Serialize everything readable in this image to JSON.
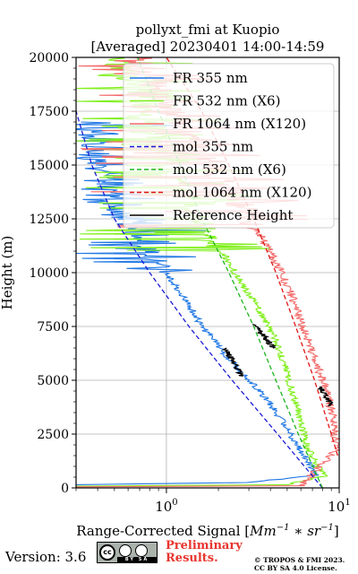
{
  "chart_data": {
    "type": "line",
    "title": "pollyxt_fmi at Kuopio",
    "subtitle": "[Averaged] 20230401 14:00-14:59",
    "xlabel": "Range-Corrected Signal [Mm^-1 * sr^-1]",
    "ylabel": "Height (m)",
    "xscale": "log",
    "xlim": [
      0.3,
      10
    ],
    "ylim": [
      0,
      20000
    ],
    "x_ticks": [
      "10^0",
      "10^1"
    ],
    "y_ticks": [
      "0",
      "2500",
      "5000",
      "7500",
      "10000",
      "12500",
      "15000",
      "17500",
      "20000"
    ],
    "grid": true,
    "legend_position": "top-right",
    "series": [
      {
        "name": "FR 355 nm",
        "color": "#1f77e4",
        "style": "solid",
        "points": [
          [
            0.3,
            150
          ],
          [
            3.0,
            250
          ],
          [
            7.5,
            600
          ],
          [
            6.6,
            1200
          ],
          [
            5.5,
            2200
          ],
          [
            4.6,
            3200
          ],
          [
            3.9,
            4000
          ],
          [
            3.3,
            4700
          ],
          [
            2.8,
            5300
          ],
          [
            2.3,
            6000
          ],
          [
            1.9,
            6800
          ],
          [
            1.6,
            7500
          ],
          [
            1.4,
            8300
          ],
          [
            1.2,
            9100
          ],
          [
            1.0,
            10000
          ],
          [
            0.85,
            10700
          ],
          [
            0.7,
            11600
          ],
          [
            0.6,
            12300
          ],
          [
            0.5,
            13000
          ],
          [
            0.45,
            14000
          ],
          [
            0.4,
            15000
          ],
          [
            0.35,
            16000
          ],
          [
            0.32,
            17000
          ]
        ]
      },
      {
        "name": "FR 532 nm (X6)",
        "color": "#7fef1a",
        "style": "solid",
        "points": [
          [
            0.3,
            80
          ],
          [
            5.0,
            150
          ],
          [
            8.3,
            550
          ],
          [
            7.5,
            1000
          ],
          [
            6.5,
            2000
          ],
          [
            6.0,
            3000
          ],
          [
            5.6,
            4000
          ],
          [
            5.1,
            5000
          ],
          [
            4.7,
            6000
          ],
          [
            4.2,
            7000
          ],
          [
            3.6,
            8000
          ],
          [
            3.0,
            9000
          ],
          [
            2.5,
            10000
          ],
          [
            2.1,
            11000
          ],
          [
            1.7,
            12000
          ],
          [
            1.4,
            13000
          ],
          [
            1.1,
            14500
          ],
          [
            0.9,
            16000
          ],
          [
            0.7,
            18000
          ],
          [
            0.5,
            20000
          ]
        ]
      },
      {
        "name": "FR 1064 nm (X120)",
        "color": "#f46b6b",
        "style": "solid",
        "points": [
          [
            0.3,
            50
          ],
          [
            6.0,
            100
          ],
          [
            9.7,
            1800
          ],
          [
            9.3,
            3000
          ],
          [
            8.8,
            4000
          ],
          [
            8.0,
            5000
          ],
          [
            7.2,
            6000
          ],
          [
            6.5,
            7000
          ],
          [
            5.8,
            8000
          ],
          [
            5.3,
            9000
          ],
          [
            4.6,
            10000
          ],
          [
            4.0,
            11000
          ],
          [
            3.3,
            12000
          ],
          [
            2.7,
            13000
          ],
          [
            2.2,
            14000
          ],
          [
            1.9,
            15000
          ],
          [
            1.5,
            16000
          ],
          [
            1.2,
            17000
          ],
          [
            1.0,
            18000
          ],
          [
            0.8,
            19000
          ],
          [
            0.6,
            20000
          ]
        ]
      },
      {
        "name": "mol 355 nm",
        "color": "#1a1ad6",
        "style": "dashed",
        "points": [
          [
            8.0,
            0
          ],
          [
            4.4,
            2500
          ],
          [
            2.4,
            5000
          ],
          [
            1.35,
            7500
          ],
          [
            0.8,
            10000
          ],
          [
            0.5,
            12500
          ],
          [
            0.37,
            15000
          ],
          [
            0.3,
            17500
          ]
        ]
      },
      {
        "name": "mol 532 nm (X6)",
        "color": "#1db51d",
        "style": "dashed",
        "points": [
          [
            8.0,
            0
          ],
          [
            5.8,
            2500
          ],
          [
            4.3,
            5000
          ],
          [
            3.2,
            7500
          ],
          [
            2.3,
            10000
          ],
          [
            1.6,
            12500
          ],
          [
            1.2,
            15000
          ],
          [
            0.9,
            17500
          ],
          [
            0.68,
            20000
          ]
        ]
      },
      {
        "name": "mol 1064 nm (X120)",
        "color": "#e01515",
        "style": "dashed",
        "points": [
          [
            9.8,
            1500
          ],
          [
            9.0,
            2500
          ],
          [
            7.2,
            5000
          ],
          [
            5.6,
            7500
          ],
          [
            4.3,
            10000
          ],
          [
            3.2,
            12500
          ],
          [
            2.3,
            15000
          ],
          [
            1.6,
            17500
          ],
          [
            1.0,
            20000
          ]
        ]
      },
      {
        "name": "Reference Height",
        "color": "#000000",
        "style": "solid",
        "segments": [
          {
            "x_range": [
              2.2,
              2.7
            ],
            "y_range": [
              5200,
              6500
            ]
          },
          {
            "x_range": [
              3.2,
              4.2
            ],
            "y_range": [
              6500,
              7600
            ]
          },
          {
            "x_range": [
              7.8,
              9.0
            ],
            "y_range": [
              3800,
              4700
            ]
          }
        ]
      }
    ]
  },
  "footer": {
    "version": "Version: 3.6",
    "license_badge": "BY SA",
    "preliminary_line1": "Preliminary",
    "preliminary_line2": "Results.",
    "copyright_line1": "© TROPOS & FMI 2023.",
    "copyright_line2": "CC BY SA 4.0 License."
  }
}
